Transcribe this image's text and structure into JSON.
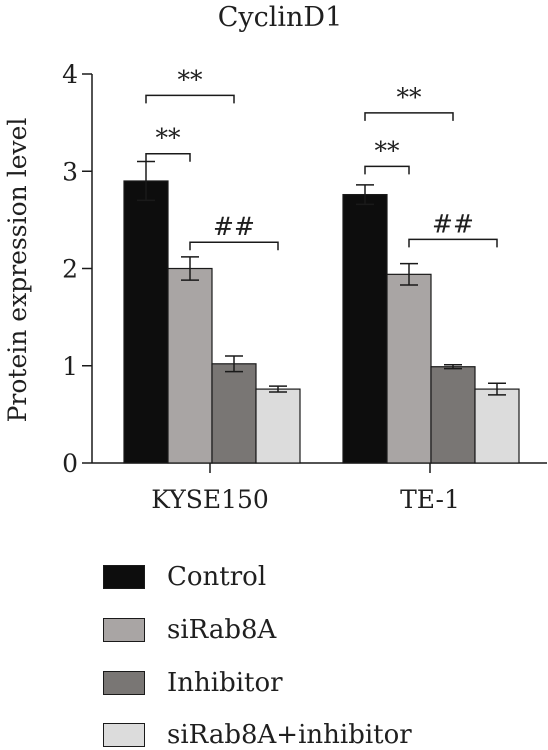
{
  "chart_data": {
    "type": "bar",
    "title": "CyclinD1",
    "ylabel": "Protein expression level",
    "xlabel": "",
    "ylim": [
      0,
      4
    ],
    "yticks": [
      "0",
      "1",
      "2",
      "3",
      "4"
    ],
    "categories": [
      "KYSE150",
      "TE-1"
    ],
    "series": [
      {
        "name": "Control",
        "values": [
          2.9,
          2.76
        ],
        "errors": [
          0.2,
          0.1
        ],
        "color": "#0d0d0d"
      },
      {
        "name": "siRab8A",
        "values": [
          2.0,
          1.94
        ],
        "errors": [
          0.12,
          0.11
        ],
        "color": "#a9a5a4"
      },
      {
        "name": "Inhibitor",
        "values": [
          1.02,
          0.99
        ],
        "errors": [
          0.08,
          0.02
        ],
        "color": "#797674"
      },
      {
        "name": "siRab8A+inhibitor",
        "values": [
          0.76,
          0.76
        ],
        "errors": [
          0.03,
          0.06
        ],
        "color": "#dcdcdc"
      }
    ],
    "annotations": [
      {
        "category": "KYSE150",
        "from_series": 0,
        "to_series": 2,
        "label": "**",
        "y": 3.78
      },
      {
        "category": "KYSE150",
        "from_series": 0,
        "to_series": 1,
        "label": "**",
        "y": 3.18
      },
      {
        "category": "KYSE150",
        "from_series": 1,
        "to_series": 3,
        "label": "##",
        "y": 2.27
      },
      {
        "category": "TE-1",
        "from_series": 0,
        "to_series": 2,
        "label": "**",
        "y": 3.6
      },
      {
        "category": "TE-1",
        "from_series": 0,
        "to_series": 1,
        "label": "**",
        "y": 3.05
      },
      {
        "category": "TE-1",
        "from_series": 1,
        "to_series": 3,
        "label": "##",
        "y": 2.3
      }
    ],
    "grid": false,
    "legend": "bottom"
  }
}
